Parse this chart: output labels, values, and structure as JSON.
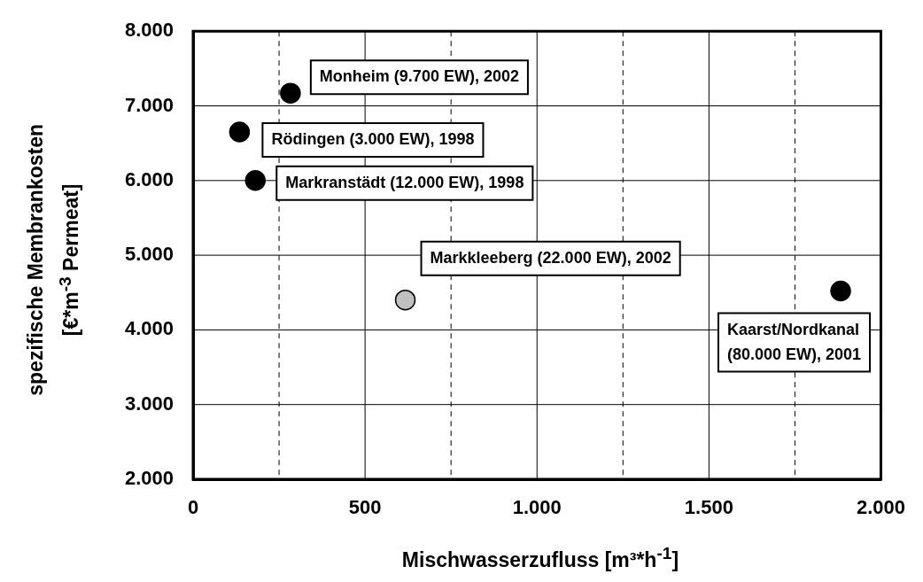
{
  "chart_data": {
    "type": "scatter",
    "xlabel": "Mischwasserzufluss   [m³*h$^{-1}$]",
    "ylabel": "spezifische Membrankosten [€*m$^{-3}$ Permeat]",
    "x": [
      283,
      135,
      181,
      617,
      1883
    ],
    "series": [
      {
        "values": [
          7170,
          6650,
          6000,
          4400,
          4520
        ],
        "colors": [
          "#000000",
          "#000000",
          "#000000",
          "#c0c0c0",
          "#000000"
        ]
      }
    ],
    "xlim": [
      0,
      2000
    ],
    "xticks": [
      0,
      {
        "value": 250,
        "label": null
      },
      500,
      {
        "value": 750,
        "label": null
      },
      {
        "value": 1000,
        "label": "1.000"
      },
      {
        "value": 1250,
        "label": null
      },
      {
        "value": 1500,
        "label": "1.500"
      },
      {
        "value": 1750,
        "label": null
      },
      {
        "value": 2000,
        "label": "2.000"
      }
    ],
    "ylim": [
      2000,
      8000
    ],
    "yticks": [
      {
        "value": 2000,
        "label": "2.000"
      },
      {
        "value": 3000,
        "label": "3.000"
      },
      {
        "value": 4000,
        "label": "4.000"
      },
      {
        "value": 5000,
        "label": "5.000"
      },
      {
        "value": 6000,
        "label": "6.000"
      },
      {
        "value": 7000,
        "label": "7.000"
      },
      {
        "value": 8000,
        "label": "8.000"
      }
    ],
    "annotations": [
      {
        "text": "Monheim (9.700 EW), 2002",
        "x": 283,
        "y": 7170
      },
      {
        "text": "Rödingen (3.000 EW), 1998",
        "x": 135,
        "y": 6650
      },
      {
        "text": "Markranstädt (12.000 EW), 1998",
        "x": 181,
        "y": 6000
      },
      {
        "text": "Markkleeberg (22.000 EW), 2002",
        "x": 617,
        "y": 4400
      },
      {
        "text": "Kaarst/Nordkanal (80.000 EW), 2001",
        "x": 1883,
        "y": 4520
      }
    ],
    "grid": true,
    "legend": false,
    "marker": "circle"
  }
}
